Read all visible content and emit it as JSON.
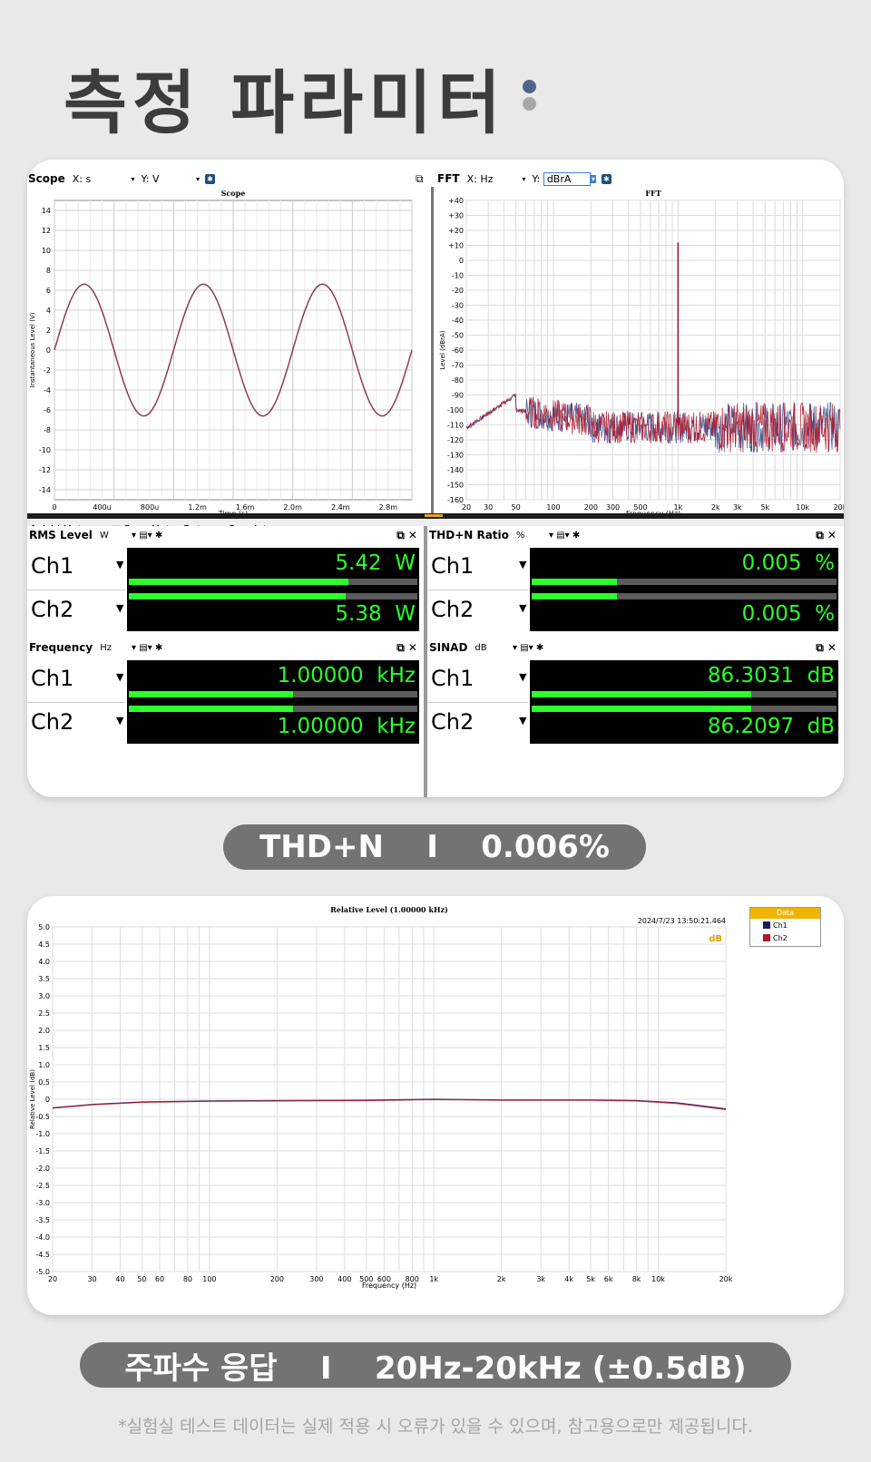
{
  "page_title": "측정 파라미터",
  "colors": {
    "dot1": "#50648c",
    "dot2": "#a8a8a8",
    "ch1": "#1f3a8a",
    "ch2": "#b0172a",
    "meter_green": "#2cff2c"
  },
  "scope": {
    "label": "Scope",
    "x_label": "X:",
    "x_unit": "s",
    "y_label": "Y:",
    "y_unit": "V",
    "chart_title": "Scope",
    "xlabel": "Time (s)",
    "ylabel": "Instantaneous Level (V)"
  },
  "fft": {
    "label": "FFT",
    "x_label": "X:",
    "x_unit": "Hz",
    "y_label": "Y:",
    "y_unit": "dBrA",
    "chart_title": "FFT",
    "xlabel": "Frequency (Hz)",
    "ylabel": "Level (dBrA)"
  },
  "meter_toolbar": {
    "add_meter": "Add Meter",
    "save_meter_data": "Save Meter Data",
    "regulate": "Regulate"
  },
  "meters": {
    "rms": {
      "title": "RMS Level",
      "unit": "W",
      "ch1_label": "Ch1",
      "ch2_label": "Ch2",
      "ch1_value": "5.42",
      "ch2_value": "5.38",
      "ch1_unit": "W",
      "ch2_unit": "W",
      "ch1_fill": 0.76,
      "ch2_fill": 0.75
    },
    "thdn": {
      "title": "THD+N Ratio",
      "unit": "%",
      "ch1_label": "Ch1",
      "ch2_label": "Ch2",
      "ch1_value": "0.005",
      "ch2_value": "0.005",
      "ch1_unit": "%",
      "ch2_unit": "%",
      "ch1_fill": 0.28,
      "ch2_fill": 0.28
    },
    "freq": {
      "title": "Frequency",
      "unit": "Hz",
      "ch1_label": "Ch1",
      "ch2_label": "Ch2",
      "ch1_value": "1.00000",
      "ch2_value": "1.00000",
      "ch1_unit": "kHz",
      "ch2_unit": "kHz",
      "ch1_fill": 0.57,
      "ch2_fill": 0.57
    },
    "sinad": {
      "title": "SINAD",
      "unit": "dB",
      "ch1_label": "Ch1",
      "ch2_label": "Ch2",
      "ch1_value": "86.3031",
      "ch2_value": "86.2097",
      "ch1_unit": "dB",
      "ch2_unit": "dB",
      "ch1_fill": 0.72,
      "ch2_fill": 0.72
    }
  },
  "thdn_pill": "THD+N    I    0.006%",
  "freq_response": {
    "chart_title": "Relative Level (1.00000 kHz)",
    "timestamp": "2024/7/23 13:50:21.464",
    "xlabel": "Frequency (Hz)",
    "ylabel": "Relative Level (dB)",
    "legend_title": "Data",
    "legend": [
      "Ch1",
      "Ch2"
    ]
  },
  "freq_pill": "주파수 응답    I    20Hz-20kHz (±0.5dB)",
  "footer": "*실험실 테스트 데이터는 실제 적용 시 오류가 있을 수 있으며, 참고용으로만 제공됩니다.",
  "chart_data": [
    {
      "type": "line",
      "title": "Scope",
      "xlabel": "Time (s)",
      "ylabel": "Instantaneous Level (V)",
      "xlim": [
        0,
        0.003
      ],
      "ylim": [
        -15,
        15
      ],
      "x_ticks": [
        "0",
        "400u",
        "800u",
        "1.2m",
        "1.6m",
        "2.0m",
        "2.4m",
        "2.8m"
      ],
      "y_ticks": [
        "14",
        "12",
        "10",
        "8",
        "6",
        "4",
        "2",
        "0",
        "-2",
        "-4",
        "-6",
        "-8",
        "-10",
        "-12",
        "-14"
      ],
      "series": [
        {
          "amplitude": 6.6,
          "frequency_hz": 1000
        }
      ],
      "grid": true
    },
    {
      "type": "line",
      "title": "FFT",
      "xlabel": "Frequency (Hz)",
      "ylabel": "Level (dBrA)",
      "x_scale": "log",
      "xlim": [
        20,
        20000
      ],
      "ylim": [
        -160,
        40
      ],
      "x_ticks": [
        "20",
        "30",
        "50",
        "100",
        "200",
        "300",
        "500",
        "1k",
        "2k",
        "3k",
        "5k",
        "10k",
        "20k"
      ],
      "y_ticks": [
        "+40",
        "+30",
        "+20",
        "+10",
        "0",
        "-10",
        "-20",
        "-30",
        "-40",
        "-50",
        "-60",
        "-70",
        "-80",
        "-90",
        "-100",
        "-110",
        "-120",
        "-130",
        "-140",
        "-150",
        "-160"
      ],
      "peak": {
        "x": 1000,
        "y": 12
      },
      "noise_floor_db": [
        -115,
        -100
      ],
      "grid": true
    },
    {
      "type": "line",
      "title": "Relative Level (1.00000 kHz)",
      "xlabel": "Frequency (Hz)",
      "ylabel": "Relative Level (dB)",
      "x_scale": "log",
      "xlim": [
        20,
        20000
      ],
      "ylim": [
        -5,
        5
      ],
      "x_ticks": [
        "20",
        "30",
        "40",
        "50",
        "60",
        "80",
        "100",
        "200",
        "300",
        "400",
        "500",
        "600",
        "800",
        "1k",
        "2k",
        "3k",
        "4k",
        "5k",
        "6k",
        "8k",
        "10k",
        "20k"
      ],
      "y_ticks": [
        "5.0",
        "4.5",
        "4.0",
        "3.5",
        "3.0",
        "2.5",
        "2.0",
        "1.5",
        "1.0",
        "0.5",
        "0",
        "-0.5",
        "-1.0",
        "-1.5",
        "-2.0",
        "-2.5",
        "-3.0",
        "-3.5",
        "-4.0",
        "-4.5",
        "-5.0"
      ],
      "series": [
        {
          "name": "Ch1",
          "x": [
            20,
            30,
            50,
            100,
            200,
            500,
            1000,
            2000,
            5000,
            8000,
            12000,
            20000
          ],
          "y": [
            -0.25,
            -0.15,
            -0.08,
            -0.05,
            -0.04,
            -0.03,
            0.0,
            -0.02,
            -0.02,
            -0.04,
            -0.1,
            -0.28
          ]
        },
        {
          "name": "Ch2",
          "x": [
            20,
            30,
            50,
            100,
            200,
            500,
            1000,
            2000,
            5000,
            8000,
            12000,
            20000
          ],
          "y": [
            -0.26,
            -0.16,
            -0.09,
            -0.06,
            -0.05,
            -0.04,
            -0.01,
            -0.03,
            -0.03,
            -0.05,
            -0.12,
            -0.3
          ]
        }
      ],
      "legend": "right",
      "grid": true
    }
  ]
}
